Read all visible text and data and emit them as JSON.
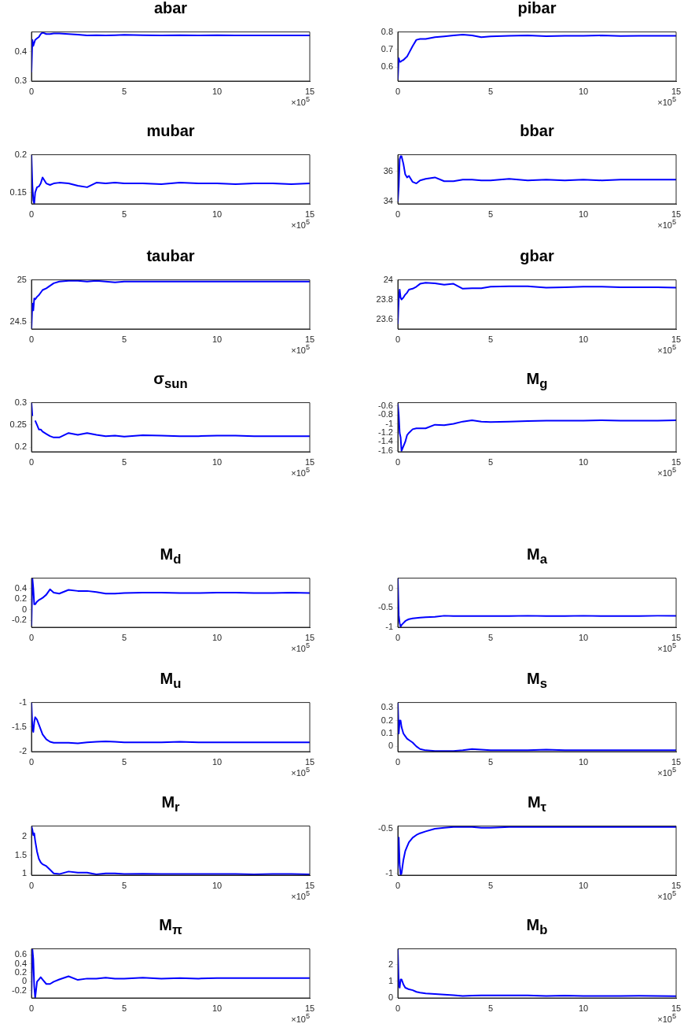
{
  "chart_data": [
    {
      "type": "line",
      "title": "abar",
      "annotations": [
        "×10$^{5}$"
      ],
      "color": "#0000ff",
      "xlim": [
        0,
        15
      ],
      "xticks": [
        0,
        5,
        10,
        15
      ],
      "ylim": [
        0.3,
        0.467
      ],
      "yticks": [
        0.3,
        0.4
      ],
      "x": [
        0,
        0.05,
        0.1,
        0.15,
        0.2,
        0.3,
        0.4,
        0.5,
        0.6,
        0.8,
        1,
        1.2,
        1.5,
        2,
        2.5,
        3,
        3.5,
        4,
        4.5,
        5,
        6,
        7,
        8,
        9,
        10,
        11,
        12,
        13,
        14,
        15
      ],
      "values": [
        0.33,
        0.44,
        0.42,
        0.43,
        0.44,
        0.445,
        0.45,
        0.46,
        0.465,
        0.46,
        0.46,
        0.462,
        0.462,
        0.46,
        0.458,
        0.455,
        0.456,
        0.455,
        0.456,
        0.457,
        0.456,
        0.455,
        0.456,
        0.455,
        0.456,
        0.455,
        0.455,
        0.455,
        0.455,
        0.455
      ]
    },
    {
      "type": "line",
      "title": "pibar",
      "annotations": [
        "×10$^{5}$"
      ],
      "color": "#0000ff",
      "xlim": [
        0,
        15
      ],
      "xticks": [
        0,
        5,
        10,
        15
      ],
      "ylim": [
        0.52,
        0.8
      ],
      "yticks": [
        0.6,
        0.7,
        0.8
      ],
      "x": [
        0,
        0.05,
        0.1,
        0.15,
        0.2,
        0.3,
        0.4,
        0.5,
        0.6,
        0.8,
        1,
        1.2,
        1.5,
        2,
        2.5,
        3,
        3.5,
        4,
        4.5,
        5,
        6,
        7,
        8,
        9,
        10,
        11,
        12,
        13,
        14,
        15
      ],
      "values": [
        0.53,
        0.65,
        0.63,
        0.63,
        0.635,
        0.64,
        0.65,
        0.66,
        0.68,
        0.72,
        0.755,
        0.76,
        0.76,
        0.77,
        0.775,
        0.78,
        0.785,
        0.78,
        0.77,
        0.775,
        0.778,
        0.78,
        0.776,
        0.778,
        0.778,
        0.78,
        0.777,
        0.778,
        0.778,
        0.778
      ]
    },
    {
      "type": "line",
      "title": "mubar",
      "annotations": [
        "×10$^{5}$"
      ],
      "color": "#0000ff",
      "xlim": [
        0,
        15
      ],
      "xticks": [
        0,
        5,
        10,
        15
      ],
      "ylim": [
        0.135,
        0.2
      ],
      "yticks": [
        0.15,
        0.2
      ],
      "x": [
        0,
        0.05,
        0.1,
        0.15,
        0.2,
        0.3,
        0.4,
        0.5,
        0.6,
        0.8,
        1,
        1.2,
        1.5,
        2,
        2.5,
        3,
        3.5,
        4,
        4.5,
        5,
        6,
        7,
        8,
        9,
        10,
        11,
        12,
        13,
        14,
        15
      ],
      "values": [
        0.2,
        0.16,
        0.14,
        0.135,
        0.15,
        0.157,
        0.158,
        0.162,
        0.17,
        0.162,
        0.16,
        0.162,
        0.163,
        0.162,
        0.159,
        0.157,
        0.163,
        0.162,
        0.163,
        0.162,
        0.162,
        0.161,
        0.163,
        0.162,
        0.162,
        0.161,
        0.162,
        0.162,
        0.161,
        0.162
      ]
    },
    {
      "type": "line",
      "title": "bbar",
      "annotations": [
        "×10$^{5}$"
      ],
      "color": "#0000ff",
      "xlim": [
        0,
        15
      ],
      "xticks": [
        0,
        5,
        10,
        15
      ],
      "ylim": [
        33.85,
        37.1
      ],
      "yticks": [
        34,
        36
      ],
      "x": [
        0,
        0.05,
        0.1,
        0.15,
        0.2,
        0.3,
        0.4,
        0.5,
        0.6,
        0.8,
        1,
        1.2,
        1.5,
        2,
        2.5,
        3,
        3.5,
        4,
        4.5,
        5,
        6,
        7,
        8,
        9,
        10,
        11,
        12,
        13,
        14,
        15
      ],
      "values": [
        34,
        35,
        36.8,
        37,
        37,
        36.5,
        35.8,
        35.6,
        35.7,
        35.3,
        35.2,
        35.4,
        35.5,
        35.6,
        35.35,
        35.35,
        35.45,
        35.45,
        35.4,
        35.4,
        35.5,
        35.4,
        35.45,
        35.4,
        35.45,
        35.4,
        35.45,
        35.45,
        35.45,
        35.45
      ]
    },
    {
      "type": "line",
      "title": "taubar",
      "annotations": [
        "×10$^{5}$"
      ],
      "color": "#0000ff",
      "xlim": [
        0,
        15
      ],
      "xticks": [
        0,
        5,
        10,
        15
      ],
      "ylim": [
        24.42,
        25
      ],
      "yticks": [
        24.5,
        25
      ],
      "x": [
        0,
        0.05,
        0.1,
        0.15,
        0.2,
        0.3,
        0.4,
        0.5,
        0.6,
        0.8,
        1,
        1.2,
        1.5,
        2,
        2.5,
        3,
        3.5,
        4,
        4.5,
        5,
        6,
        7,
        8,
        9,
        10,
        11,
        12,
        13,
        14,
        15
      ],
      "values": [
        24.42,
        24.72,
        24.64,
        24.78,
        24.77,
        24.8,
        24.82,
        24.85,
        24.88,
        24.9,
        24.93,
        24.96,
        24.98,
        24.99,
        24.99,
        24.98,
        24.99,
        24.98,
        24.97,
        24.98,
        24.98,
        24.98,
        24.98,
        24.98,
        24.98,
        24.98,
        24.98,
        24.98,
        24.98,
        24.98
      ]
    },
    {
      "type": "line",
      "title": "gbar",
      "annotations": [
        "×10$^{5}$"
      ],
      "color": "#0000ff",
      "xlim": [
        0,
        15
      ],
      "xticks": [
        0,
        5,
        10,
        15
      ],
      "ylim": [
        23.5,
        24
      ],
      "yticks": [
        23.6,
        23.8,
        24
      ],
      "x": [
        0,
        0.05,
        0.1,
        0.15,
        0.2,
        0.3,
        0.4,
        0.5,
        0.6,
        0.8,
        1,
        1.2,
        1.5,
        2,
        2.5,
        3,
        3.5,
        4,
        4.5,
        5,
        6,
        7,
        8,
        9,
        10,
        11,
        12,
        13,
        14,
        15
      ],
      "values": [
        23.55,
        23.8,
        23.9,
        23.82,
        23.8,
        23.82,
        23.85,
        23.87,
        23.9,
        23.91,
        23.93,
        23.96,
        23.97,
        23.965,
        23.95,
        23.96,
        23.91,
        23.915,
        23.915,
        23.93,
        23.935,
        23.935,
        23.92,
        23.925,
        23.93,
        23.93,
        23.925,
        23.925,
        23.925,
        23.92
      ]
    },
    {
      "type": "line",
      "title": "σ$_{sun}$",
      "annotations": [
        "×10$^{5}$"
      ],
      "color": "#0000ff",
      "xlim": [
        0,
        15
      ],
      "xticks": [
        0,
        5,
        10,
        15
      ],
      "ylim": [
        0.19,
        0.3
      ],
      "yticks": [
        0.2,
        0.25,
        0.3
      ],
      "x": [
        0,
        0.05,
        0.1,
        0.15,
        0.2,
        0.3,
        0.4,
        0.5,
        0.6,
        0.8,
        1,
        1.2,
        1.5,
        2,
        2.5,
        3,
        3.5,
        4,
        4.5,
        5,
        6,
        7,
        8,
        9,
        10,
        11,
        12,
        13,
        14,
        15
      ],
      "values": [
        0.3,
        0.27,
        null,
        null,
        0.26,
        0.25,
        0.24,
        0.24,
        0.235,
        0.23,
        0.225,
        0.222,
        0.222,
        0.232,
        0.228,
        0.232,
        0.228,
        0.225,
        0.226,
        0.224,
        0.227,
        0.226,
        0.225,
        0.225,
        0.226,
        0.226,
        0.225,
        0.225,
        0.225,
        0.225
      ]
    },
    {
      "type": "line",
      "title": "M$_{g}$",
      "annotations": [
        "×10$^{5}$"
      ],
      "color": "#0000ff",
      "xlim": [
        0,
        15
      ],
      "xticks": [
        0,
        5,
        10,
        15
      ],
      "ylim": [
        -1.62,
        -0.53
      ],
      "yticks": [
        -1.6,
        -1.4,
        -1.2,
        -1,
        -0.8,
        -0.6
      ],
      "x": [
        0,
        0.05,
        0.1,
        0.15,
        0.2,
        0.3,
        0.4,
        0.5,
        0.6,
        0.8,
        1,
        1.2,
        1.5,
        2,
        2.5,
        3,
        3.5,
        4,
        4.5,
        5,
        6,
        7,
        8,
        9,
        10,
        11,
        12,
        13,
        14,
        15
      ],
      "values": [
        -0.55,
        -0.8,
        -1.2,
        -1.3,
        -1.6,
        -1.5,
        -1.4,
        -1.25,
        -1.2,
        -1.12,
        -1.1,
        -1.1,
        -1.1,
        -1.02,
        -1.03,
        -1,
        -0.95,
        -0.92,
        -0.95,
        -0.96,
        -0.95,
        -0.94,
        -0.93,
        -0.93,
        -0.93,
        -0.92,
        -0.93,
        -0.93,
        -0.93,
        -0.92
      ]
    },
    {
      "type": "line",
      "title": "M$_{d}$",
      "annotations": [
        "×10$^{5}$"
      ],
      "color": "#0000ff",
      "xlim": [
        0,
        15
      ],
      "xticks": [
        0,
        5,
        10,
        15
      ],
      "ylim": [
        -0.33,
        0.59
      ],
      "yticks": [
        -0.2,
        0,
        0.2,
        0.4
      ],
      "x": [
        0,
        0.05,
        0.1,
        0.15,
        0.2,
        0.3,
        0.4,
        0.5,
        0.6,
        0.8,
        1,
        1.2,
        1.5,
        2,
        2.5,
        3,
        3.5,
        4,
        4.5,
        5,
        6,
        7,
        8,
        9,
        10,
        11,
        12,
        13,
        14,
        15
      ],
      "values": [
        -0.3,
        0.59,
        0.4,
        0.1,
        0.1,
        0.15,
        0.18,
        0.2,
        0.22,
        0.28,
        0.38,
        0.32,
        0.3,
        0.37,
        0.35,
        0.35,
        0.33,
        0.3,
        0.3,
        0.31,
        0.32,
        0.32,
        0.31,
        0.31,
        0.32,
        0.32,
        0.31,
        0.31,
        0.32,
        0.31
      ]
    },
    {
      "type": "line",
      "title": "M$_{a}$",
      "annotations": [
        "×10$^{5}$"
      ],
      "color": "#0000ff",
      "xlim": [
        0,
        15
      ],
      "xticks": [
        0,
        5,
        10,
        15
      ],
      "ylim": [
        -1.01,
        0.27
      ],
      "yticks": [
        -1,
        -0.5,
        0
      ],
      "x": [
        0,
        0.05,
        0.1,
        0.15,
        0.2,
        0.3,
        0.4,
        0.5,
        0.6,
        0.8,
        1,
        1.2,
        1.5,
        2,
        2.5,
        3,
        3.5,
        4,
        4.5,
        5,
        6,
        7,
        8,
        9,
        10,
        11,
        12,
        13,
        14,
        15
      ],
      "values": [
        0.27,
        -0.7,
        -0.9,
        -1,
        -0.95,
        -0.9,
        -0.85,
        -0.82,
        -0.8,
        -0.78,
        -0.77,
        -0.76,
        -0.75,
        -0.74,
        -0.71,
        -0.72,
        -0.72,
        -0.72,
        -0.72,
        -0.72,
        -0.72,
        -0.71,
        -0.72,
        -0.72,
        -0.71,
        -0.72,
        -0.72,
        -0.72,
        -0.71,
        -0.71
      ]
    },
    {
      "type": "line",
      "title": "M$_{u}$",
      "annotations": [
        "×10$^{5}$"
      ],
      "color": "#0000ff",
      "xlim": [
        0,
        15
      ],
      "xticks": [
        0,
        5,
        10,
        15
      ],
      "ylim": [
        -2,
        -1
      ],
      "yticks": [
        -2,
        -1.5,
        -1
      ],
      "x": [
        0,
        0.05,
        0.1,
        0.15,
        0.2,
        0.3,
        0.4,
        0.5,
        0.6,
        0.8,
        1,
        1.2,
        1.5,
        2,
        2.5,
        3,
        3.5,
        4,
        4.5,
        5,
        6,
        7,
        8,
        9,
        10,
        11,
        12,
        13,
        14,
        15
      ],
      "values": [
        -1,
        -1.5,
        -1.6,
        -1.4,
        -1.3,
        -1.35,
        -1.45,
        -1.55,
        -1.65,
        -1.75,
        -1.8,
        -1.82,
        -1.82,
        -1.82,
        -1.83,
        -1.81,
        -1.8,
        -1.79,
        -1.8,
        -1.81,
        -1.81,
        -1.81,
        -1.8,
        -1.81,
        -1.81,
        -1.81,
        -1.81,
        -1.81,
        -1.81,
        -1.81
      ]
    },
    {
      "type": "line",
      "title": "M$_{s}$",
      "annotations": [
        "×10$^{5}$"
      ],
      "color": "#0000ff",
      "xlim": [
        0,
        15
      ],
      "xticks": [
        0,
        5,
        10,
        15
      ],
      "ylim": [
        -0.04,
        0.34
      ],
      "yticks": [
        0,
        0.1,
        0.2,
        0.3
      ],
      "x": [
        0,
        0.05,
        0.1,
        0.15,
        0.2,
        0.3,
        0.4,
        0.5,
        0.6,
        0.8,
        1,
        1.2,
        1.5,
        2,
        2.5,
        3,
        3.5,
        4,
        4.5,
        5,
        6,
        7,
        8,
        9,
        10,
        11,
        12,
        13,
        14,
        15
      ],
      "values": [
        0.34,
        0.1,
        0.2,
        0.2,
        0.15,
        0.1,
        0.08,
        0.06,
        0.05,
        0.03,
        0,
        -0.02,
        -0.03,
        -0.035,
        -0.035,
        -0.035,
        -0.03,
        -0.02,
        -0.025,
        -0.03,
        -0.03,
        -0.03,
        -0.025,
        -0.03,
        -0.03,
        -0.03,
        -0.03,
        -0.03,
        -0.03,
        -0.03
      ]
    },
    {
      "type": "line",
      "title": "M$_{r}$",
      "annotations": [
        "×10$^{5}$"
      ],
      "color": "#0000ff",
      "xlim": [
        0,
        15
      ],
      "xticks": [
        0,
        5,
        10,
        15
      ],
      "ylim": [
        0.95,
        2.3
      ],
      "yticks": [
        1,
        1.5,
        2
      ],
      "x": [
        0,
        0.05,
        0.1,
        0.15,
        0.2,
        0.3,
        0.4,
        0.5,
        0.6,
        0.8,
        1,
        1.2,
        1.5,
        2,
        2.5,
        3,
        3.5,
        4,
        4.5,
        5,
        6,
        7,
        8,
        9,
        10,
        11,
        12,
        13,
        14,
        15
      ],
      "values": [
        2.3,
        2.2,
        2.05,
        2.1,
        1.9,
        1.6,
        1.4,
        1.3,
        1.25,
        1.2,
        1.1,
        1,
        0.98,
        1.05,
        1.02,
        1.02,
        0.97,
        1,
        1,
        0.98,
        0.99,
        0.98,
        0.98,
        0.98,
        0.98,
        0.98,
        0.97,
        0.98,
        0.98,
        0.97
      ]
    },
    {
      "type": "line",
      "title": "M$_{τ}$",
      "annotations": [
        "×10$^{5}$"
      ],
      "color": "#0000ff",
      "xlim": [
        0,
        15
      ],
      "xticks": [
        0,
        5,
        10,
        15
      ],
      "ylim": [
        -1.02,
        -0.47
      ],
      "yticks": [
        -1,
        -0.5
      ],
      "x": [
        0,
        0.05,
        0.1,
        0.15,
        0.2,
        0.3,
        0.4,
        0.5,
        0.6,
        0.8,
        1,
        1.2,
        1.5,
        2,
        2.5,
        3,
        3.5,
        4,
        4.5,
        5,
        6,
        7,
        8,
        9,
        10,
        11,
        12,
        13,
        14,
        15
      ],
      "values": [
        -0.95,
        -0.6,
        -0.9,
        -1.02,
        -1,
        -0.85,
        -0.75,
        -0.7,
        -0.65,
        -0.6,
        -0.57,
        -0.55,
        -0.53,
        -0.5,
        -0.49,
        -0.48,
        -0.48,
        -0.48,
        -0.49,
        -0.49,
        -0.48,
        -0.48,
        -0.48,
        -0.48,
        -0.48,
        -0.48,
        -0.48,
        -0.48,
        -0.48,
        -0.48
      ]
    },
    {
      "type": "line",
      "title": "M$_{π}$",
      "annotations": [
        "×10$^{5}$"
      ],
      "color": "#0000ff",
      "xlim": [
        0,
        15
      ],
      "xticks": [
        0,
        5,
        10,
        15
      ],
      "ylim": [
        -0.36,
        0.73
      ],
      "yticks": [
        -0.2,
        0,
        0.2,
        0.4,
        0.6
      ],
      "x": [
        0,
        0.05,
        0.1,
        0.15,
        0.2,
        0.3,
        0.4,
        0.5,
        0.6,
        0.8,
        1,
        1.2,
        1.5,
        2,
        2.5,
        3,
        3.5,
        4,
        4.5,
        5,
        6,
        7,
        8,
        9,
        10,
        11,
        12,
        13,
        14,
        15
      ],
      "values": [
        -0.3,
        0.73,
        0.5,
        -0.1,
        -0.36,
        0,
        0.05,
        0.1,
        0.05,
        -0.05,
        -0.05,
        0,
        0.05,
        0.12,
        0.04,
        0.07,
        0.07,
        0.09,
        0.07,
        0.07,
        0.09,
        0.07,
        0.08,
        0.07,
        0.08,
        0.08,
        0.08,
        0.08,
        0.08,
        0.08
      ]
    },
    {
      "type": "line",
      "title": "M$_{b}$",
      "annotations": [
        "×10$^{5}$"
      ],
      "color": "#0000ff",
      "xlim": [
        0,
        15
      ],
      "xticks": [
        0,
        5,
        10,
        15
      ],
      "ylim": [
        -0.02,
        2.95
      ],
      "yticks": [
        0,
        1,
        2
      ],
      "x": [
        0,
        0.05,
        0.1,
        0.15,
        0.2,
        0.3,
        0.4,
        0.5,
        0.6,
        0.8,
        1,
        1.2,
        1.5,
        2,
        2.5,
        3,
        3.5,
        4,
        4.5,
        5,
        6,
        7,
        8,
        9,
        10,
        11,
        12,
        13,
        14,
        15
      ],
      "values": [
        2.9,
        0.8,
        0.6,
        1.1,
        1.1,
        0.8,
        0.6,
        0.55,
        0.5,
        0.45,
        0.35,
        0.3,
        0.25,
        0.22,
        0.18,
        0.15,
        0.1,
        0.12,
        0.13,
        0.14,
        0.14,
        0.13,
        0.1,
        0.12,
        0.1,
        0.1,
        0.1,
        0.11,
        0.1,
        0.09
      ]
    }
  ]
}
